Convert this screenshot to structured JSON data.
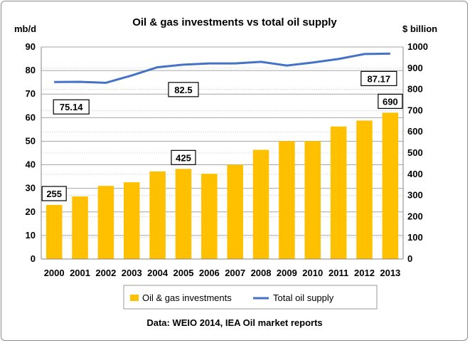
{
  "chart_data": {
    "type": "bar+line",
    "title": "Oil & gas investments vs total oil supply",
    "left_axis_label": "mb/d",
    "right_axis_label": "$ billion",
    "categories": [
      "2000",
      "2001",
      "2002",
      "2003",
      "2004",
      "2005",
      "2006",
      "2007",
      "2008",
      "2009",
      "2010",
      "2011",
      "2012",
      "2013"
    ],
    "left_ticks": [
      "0",
      "10",
      "20",
      "30",
      "40",
      "50",
      "60",
      "70",
      "80",
      "90"
    ],
    "right_ticks": [
      "0",
      "100",
      "200",
      "300",
      "400",
      "500",
      "600",
      "700",
      "800",
      "900",
      "1000"
    ],
    "ylim_left": [
      0,
      90
    ],
    "ylim_right": [
      0,
      1000
    ],
    "series": [
      {
        "name": "Oil & gas investments",
        "axis": "right",
        "kind": "bar",
        "color": "#FFC000",
        "values": [
          255,
          295,
          345,
          362,
          413,
          425,
          402,
          445,
          515,
          556,
          556,
          625,
          653,
          690
        ]
      },
      {
        "name": "Total oil supply",
        "axis": "left",
        "kind": "line",
        "color": "#4472C4",
        "values": [
          75.14,
          75.2,
          74.8,
          77.9,
          81.4,
          82.5,
          83.0,
          83.0,
          83.7,
          82.1,
          83.4,
          84.9,
          87.0,
          87.17
        ]
      }
    ],
    "annotations": [
      {
        "text": "255",
        "series": "Oil & gas investments",
        "index": 0
      },
      {
        "text": "425",
        "series": "Oil & gas investments",
        "index": 5
      },
      {
        "text": "690",
        "series": "Oil & gas investments",
        "index": 13
      },
      {
        "text": "75.14",
        "series": "Total oil supply",
        "index": 0
      },
      {
        "text": "82.5",
        "series": "Total oil supply",
        "index": 5
      },
      {
        "text": "87.17",
        "series": "Total oil supply",
        "index": 13
      }
    ],
    "legend": [
      "Oil & gas investments",
      "Total oil supply"
    ],
    "legend_position": "bottom",
    "source": "Data: WEIO 2014, IEA Oil market reports",
    "grid": true
  }
}
